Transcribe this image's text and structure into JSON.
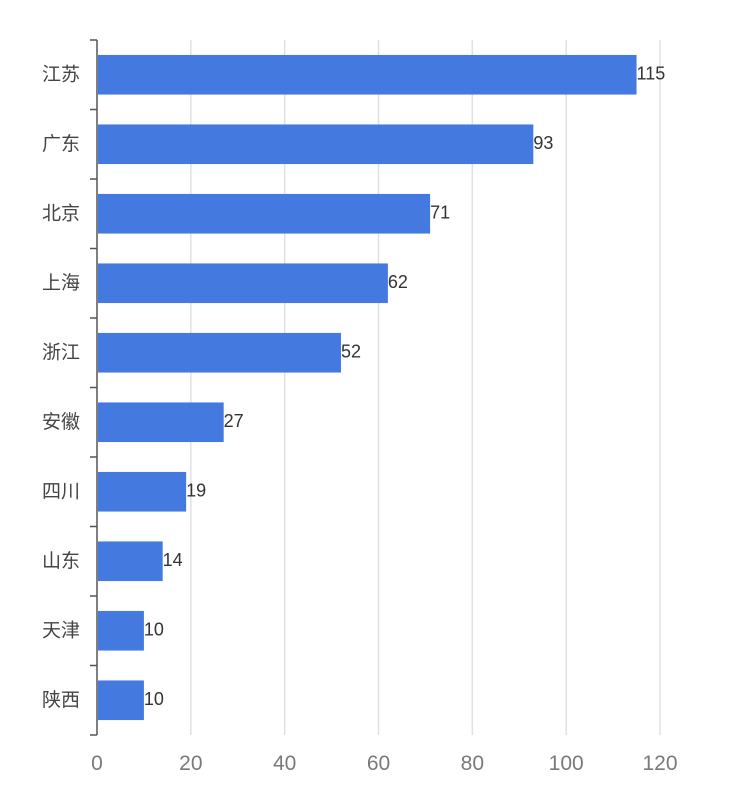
{
  "chart_data": {
    "type": "bar",
    "orientation": "horizontal",
    "title": "",
    "xlabel": "",
    "ylabel": "",
    "categories": [
      "江苏",
      "广东",
      "北京",
      "上海",
      "浙江",
      "安徽",
      "四川",
      "山东",
      "天津",
      "陕西"
    ],
    "values": [
      115,
      93,
      71,
      62,
      52,
      27,
      19,
      14,
      10,
      10
    ],
    "xlim": [
      0,
      120
    ],
    "xticks": [
      0,
      20,
      40,
      60,
      80,
      100,
      120
    ],
    "xtick_labels": [
      "0",
      "20",
      "40",
      "60",
      "80",
      "100",
      "120"
    ],
    "grid": "vertical",
    "legend": "none",
    "bar_color": "#4479e0"
  }
}
